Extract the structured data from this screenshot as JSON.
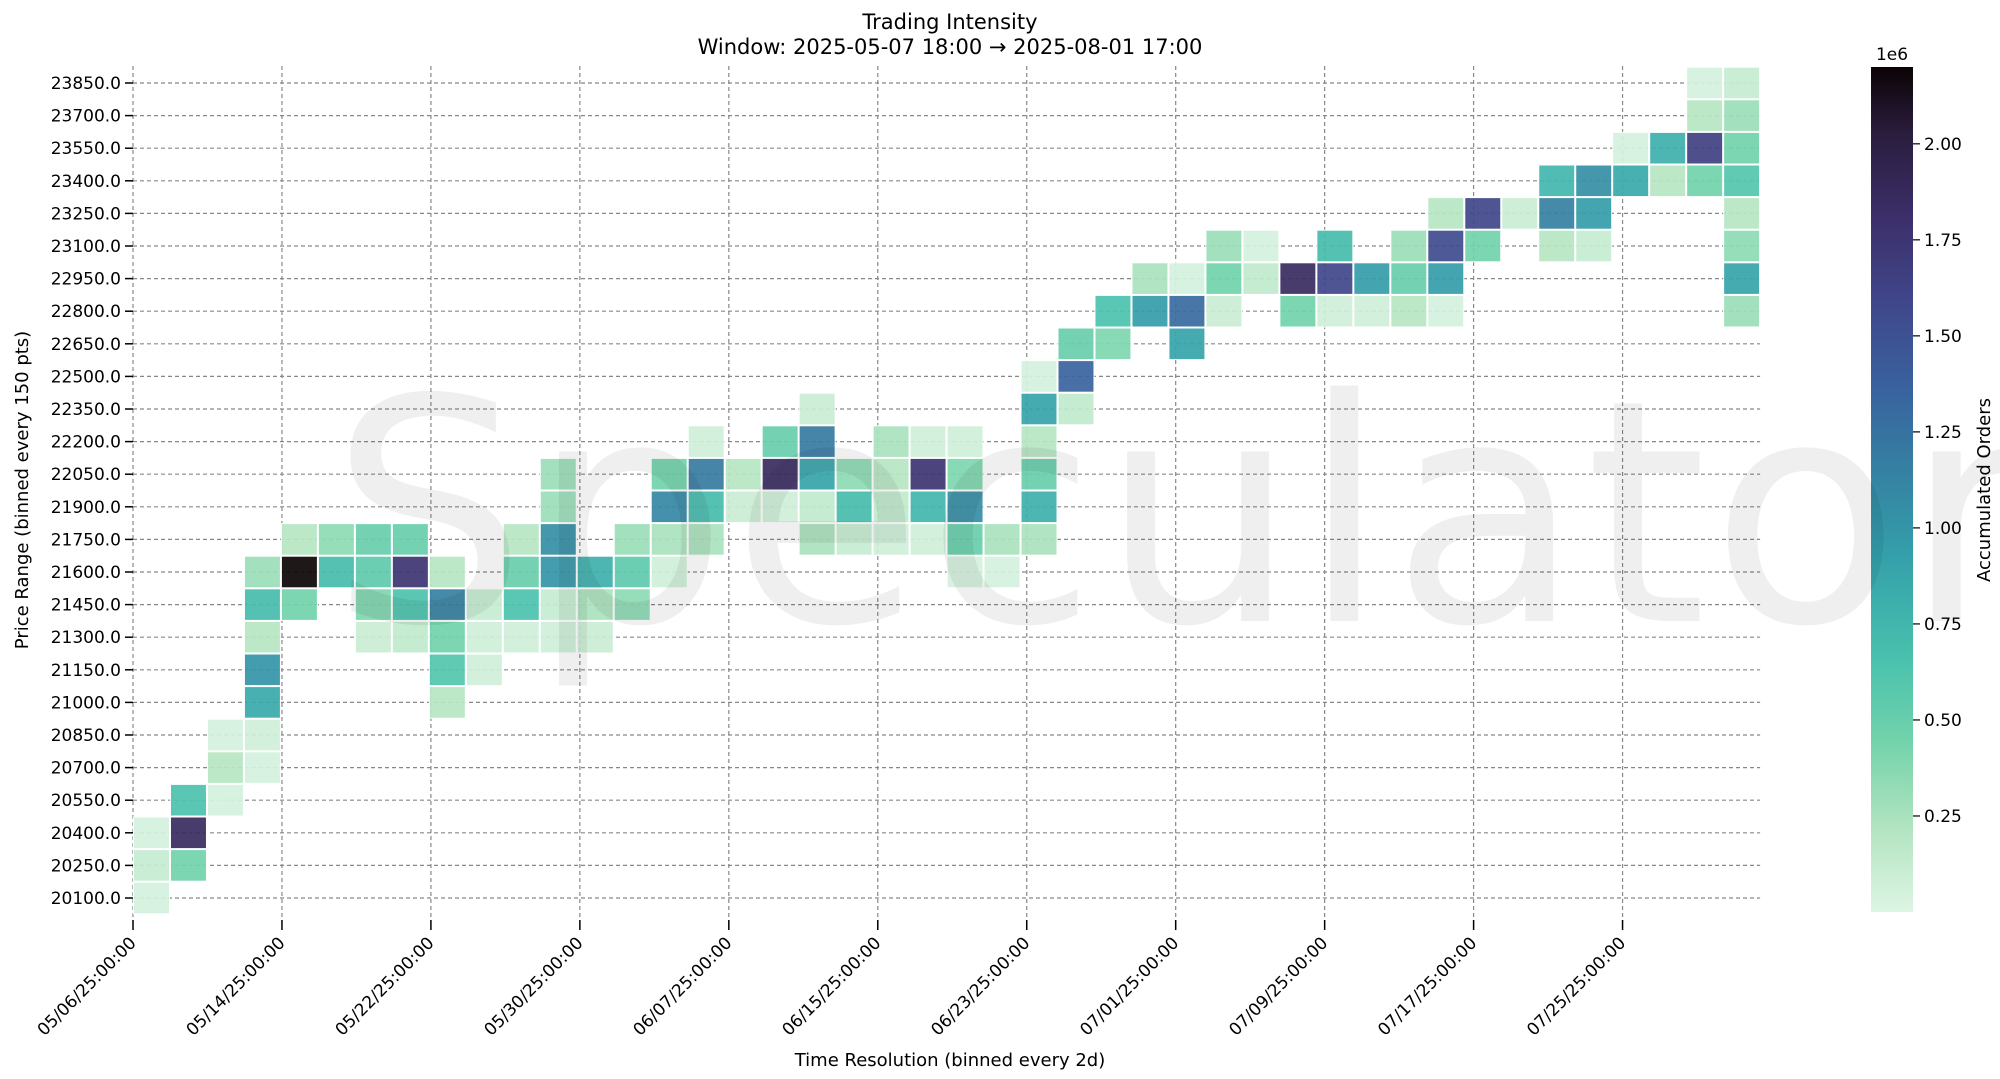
{
  "title": "Trading Intensity",
  "subtitle": "Window: 2025-05-07 18:00 → 2025-08-01 17:00",
  "watermark": "Speculator",
  "colorbar": {
    "label": "Accumulated Orders",
    "scale_label": "1e6",
    "ticks": [
      "0.25",
      "0.50",
      "0.75",
      "1.00",
      "1.25",
      "1.50",
      "1.75",
      "2.00"
    ],
    "tick_values": [
      0.25,
      0.5,
      0.75,
      1.0,
      1.25,
      1.5,
      1.75,
      2.0
    ],
    "vmin": 0.0,
    "vmax": 2.2,
    "colormap": "mako_r"
  },
  "chart_data": {
    "type": "heatmap",
    "title": "Trading Intensity",
    "subtitle": "Window: 2025-05-07 18:00 → 2025-08-01 17:00",
    "xlabel": "Time Resolution (binned every 2d)",
    "ylabel": "Price Range (binned every 150 pts)",
    "colorbar_label": "Accumulated Orders",
    "colorbar_scale": "1e6",
    "value_units": "millions of orders",
    "n_columns": 44,
    "x_tick_labels": [
      "05/06/25:00:00",
      "05/14/25:00:00",
      "05/22/25:00:00",
      "05/30/25:00:00",
      "06/07/25:00:00",
      "06/15/25:00:00",
      "06/23/25:00:00",
      "07/01/25:00:00",
      "07/09/25:00:00",
      "07/17/25:00:00",
      "07/25/25:00:00"
    ],
    "x_tick_columns": [
      0,
      4,
      8,
      12,
      16,
      20,
      24,
      28,
      32,
      36,
      40
    ],
    "y_labels": [
      "23850.0",
      "23700.0",
      "23550.0",
      "23400.0",
      "23250.0",
      "23100.0",
      "22950.0",
      "22800.0",
      "22650.0",
      "22500.0",
      "22350.0",
      "22200.0",
      "22050.0",
      "21900.0",
      "21750.0",
      "21600.0",
      "21450.0",
      "21300.0",
      "21150.0",
      "21000.0",
      "20850.0",
      "20700.0",
      "20550.0",
      "20400.0",
      "20250.0",
      "20100.0"
    ],
    "grid": true,
    "cells_format": "[column_index, row_index (0=23850 top), value_in_millions]",
    "cells": [
      [
        0,
        23,
        0.05
      ],
      [
        0,
        24,
        0.12
      ],
      [
        0,
        25,
        0.05
      ],
      [
        1,
        22,
        0.65
      ],
      [
        1,
        23,
        1.85
      ],
      [
        1,
        24,
        0.45
      ],
      [
        2,
        20,
        0.05
      ],
      [
        2,
        21,
        0.2
      ],
      [
        2,
        22,
        0.05
      ],
      [
        3,
        15,
        0.3
      ],
      [
        3,
        16,
        0.7
      ],
      [
        3,
        17,
        0.2
      ],
      [
        3,
        18,
        1.0
      ],
      [
        3,
        19,
        0.85
      ],
      [
        3,
        20,
        0.08
      ],
      [
        3,
        21,
        0.05
      ],
      [
        4,
        14,
        0.2
      ],
      [
        4,
        15,
        2.2
      ],
      [
        4,
        16,
        0.45
      ],
      [
        5,
        14,
        0.35
      ],
      [
        5,
        15,
        0.7
      ],
      [
        6,
        14,
        0.5
      ],
      [
        6,
        15,
        0.55
      ],
      [
        6,
        16,
        0.4
      ],
      [
        6,
        17,
        0.1
      ],
      [
        7,
        14,
        0.5
      ],
      [
        7,
        15,
        1.75
      ],
      [
        7,
        16,
        0.65
      ],
      [
        7,
        17,
        0.15
      ],
      [
        8,
        15,
        0.2
      ],
      [
        8,
        16,
        1.15
      ],
      [
        8,
        17,
        0.45
      ],
      [
        8,
        18,
        0.6
      ],
      [
        8,
        19,
        0.2
      ],
      [
        9,
        16,
        0.12
      ],
      [
        9,
        17,
        0.08
      ],
      [
        9,
        18,
        0.08
      ],
      [
        10,
        14,
        0.2
      ],
      [
        10,
        15,
        0.5
      ],
      [
        10,
        16,
        0.65
      ],
      [
        10,
        17,
        0.08
      ],
      [
        11,
        12,
        0.3
      ],
      [
        11,
        13,
        0.3
      ],
      [
        11,
        14,
        1.05
      ],
      [
        11,
        15,
        1.0
      ],
      [
        11,
        16,
        0.12
      ],
      [
        11,
        17,
        0.08
      ],
      [
        12,
        15,
        0.8
      ],
      [
        12,
        16,
        0.25
      ],
      [
        12,
        17,
        0.1
      ],
      [
        13,
        14,
        0.3
      ],
      [
        13,
        15,
        0.55
      ],
      [
        13,
        16,
        0.35
      ],
      [
        14,
        12,
        0.45
      ],
      [
        14,
        13,
        1.1
      ],
      [
        14,
        14,
        0.25
      ],
      [
        14,
        15,
        0.08
      ],
      [
        15,
        11,
        0.08
      ],
      [
        15,
        12,
        1.2
      ],
      [
        15,
        13,
        0.7
      ],
      [
        15,
        14,
        0.25
      ],
      [
        16,
        12,
        0.2
      ],
      [
        16,
        13,
        0.1
      ],
      [
        17,
        11,
        0.5
      ],
      [
        17,
        12,
        1.85
      ],
      [
        17,
        13,
        0.08
      ],
      [
        18,
        10,
        0.1
      ],
      [
        18,
        11,
        1.2
      ],
      [
        18,
        12,
        0.9
      ],
      [
        18,
        13,
        0.15
      ],
      [
        18,
        14,
        0.25
      ],
      [
        19,
        12,
        0.35
      ],
      [
        19,
        13,
        0.7
      ],
      [
        19,
        14,
        0.12
      ],
      [
        20,
        11,
        0.25
      ],
      [
        20,
        12,
        0.2
      ],
      [
        20,
        13,
        0.15
      ],
      [
        20,
        14,
        0.08
      ],
      [
        21,
        11,
        0.08
      ],
      [
        21,
        12,
        1.75
      ],
      [
        21,
        13,
        0.75
      ],
      [
        21,
        14,
        0.08
      ],
      [
        22,
        11,
        0.08
      ],
      [
        22,
        12,
        0.4
      ],
      [
        22,
        13,
        1.05
      ],
      [
        22,
        14,
        0.5
      ],
      [
        22,
        15,
        0.05
      ],
      [
        23,
        14,
        0.25
      ],
      [
        23,
        15,
        0.05
      ],
      [
        24,
        9,
        0.05
      ],
      [
        24,
        10,
        0.9
      ],
      [
        24,
        11,
        0.2
      ],
      [
        24,
        12,
        0.5
      ],
      [
        24,
        13,
        0.8
      ],
      [
        24,
        14,
        0.25
      ],
      [
        25,
        8,
        0.5
      ],
      [
        25,
        9,
        1.35
      ],
      [
        25,
        10,
        0.15
      ],
      [
        26,
        7,
        0.65
      ],
      [
        26,
        8,
        0.4
      ],
      [
        27,
        6,
        0.25
      ],
      [
        27,
        7,
        0.95
      ],
      [
        28,
        6,
        0.05
      ],
      [
        28,
        7,
        1.3
      ],
      [
        28,
        8,
        0.9
      ],
      [
        29,
        5,
        0.3
      ],
      [
        29,
        6,
        0.45
      ],
      [
        29,
        7,
        0.1
      ],
      [
        30,
        5,
        0.05
      ],
      [
        30,
        6,
        0.15
      ],
      [
        31,
        6,
        1.85
      ],
      [
        31,
        7,
        0.45
      ],
      [
        32,
        5,
        0.7
      ],
      [
        32,
        6,
        1.6
      ],
      [
        32,
        7,
        0.08
      ],
      [
        33,
        6,
        0.95
      ],
      [
        33,
        7,
        0.08
      ],
      [
        34,
        5,
        0.3
      ],
      [
        34,
        6,
        0.5
      ],
      [
        34,
        7,
        0.2
      ],
      [
        35,
        4,
        0.2
      ],
      [
        35,
        5,
        1.55
      ],
      [
        35,
        6,
        0.95
      ],
      [
        35,
        7,
        0.05
      ],
      [
        36,
        4,
        1.6
      ],
      [
        36,
        5,
        0.45
      ],
      [
        37,
        4,
        0.1
      ],
      [
        38,
        3,
        0.75
      ],
      [
        38,
        4,
        1.15
      ],
      [
        38,
        5,
        0.2
      ],
      [
        39,
        3,
        1.05
      ],
      [
        39,
        4,
        0.95
      ],
      [
        39,
        5,
        0.12
      ],
      [
        40,
        2,
        0.05
      ],
      [
        40,
        3,
        0.85
      ],
      [
        41,
        2,
        0.8
      ],
      [
        41,
        3,
        0.2
      ],
      [
        42,
        0,
        0.05
      ],
      [
        42,
        1,
        0.2
      ],
      [
        42,
        2,
        1.65
      ],
      [
        42,
        3,
        0.45
      ],
      [
        43,
        0,
        0.12
      ],
      [
        43,
        1,
        0.3
      ],
      [
        43,
        2,
        0.45
      ],
      [
        43,
        3,
        0.6
      ],
      [
        43,
        4,
        0.2
      ],
      [
        43,
        5,
        0.35
      ],
      [
        43,
        6,
        0.9
      ],
      [
        43,
        7,
        0.3
      ]
    ]
  }
}
